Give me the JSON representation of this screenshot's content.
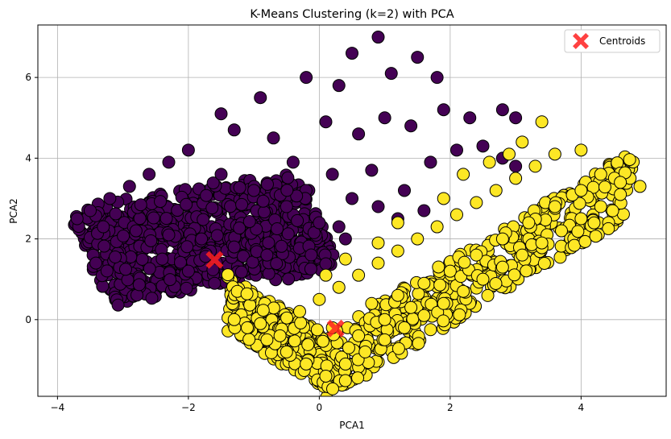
{
  "chart_data": {
    "type": "scatter",
    "title": "K-Means Clustering (k=2) with PCA",
    "xlabel": "PCA1",
    "ylabel": "PCA2",
    "xlim": [
      -4.3,
      5.3
    ],
    "ylim": [
      -1.9,
      7.3
    ],
    "xticks": [
      -4,
      -2,
      0,
      2,
      4
    ],
    "yticks": [
      0,
      2,
      4,
      6
    ],
    "xtick_labels": [
      "−4",
      "−2",
      "0",
      "2",
      "4"
    ],
    "ytick_labels": [
      "0",
      "2",
      "4",
      "6"
    ],
    "grid": true,
    "legend": {
      "placement": "top-right",
      "entries": [
        "Centroids"
      ]
    },
    "colors": {
      "cluster_0": "#440154",
      "cluster_1": "#fde725",
      "centroid": "#ff2020",
      "grid": "#b0b0b0"
    },
    "series": [
      {
        "cluster": 0,
        "color": "#440154",
        "sample_points": [
          [
            -3.7,
            2.5
          ],
          [
            -3.5,
            2.7
          ],
          [
            -3.2,
            3.0
          ],
          [
            -2.9,
            3.3
          ],
          [
            -2.6,
            3.6
          ],
          [
            -2.3,
            3.9
          ],
          [
            -2.0,
            4.2
          ],
          [
            -3.3,
            2.3
          ],
          [
            -2.8,
            2.2
          ],
          [
            -2.3,
            2.1
          ],
          [
            -1.8,
            2.0
          ],
          [
            -1.3,
            1.8
          ],
          [
            -0.8,
            1.6
          ],
          [
            -2.4,
            1.5
          ],
          [
            -2.0,
            1.2
          ],
          [
            -1.6,
            0.9
          ],
          [
            -1.2,
            0.6
          ],
          [
            -0.8,
            0.3
          ],
          [
            -0.4,
            0.1
          ],
          [
            -1.5,
            3.6
          ],
          [
            -1.0,
            3.2
          ],
          [
            -0.5,
            2.8
          ],
          [
            0.0,
            2.4
          ],
          [
            0.4,
            2.0
          ],
          [
            -1.5,
            5.1
          ],
          [
            -0.9,
            5.5
          ],
          [
            -0.2,
            6.0
          ],
          [
            0.3,
            5.8
          ],
          [
            0.5,
            6.6
          ],
          [
            0.9,
            7.0
          ],
          [
            1.1,
            6.1
          ],
          [
            1.5,
            6.5
          ],
          [
            1.8,
            6.0
          ],
          [
            -1.3,
            4.7
          ],
          [
            -0.7,
            4.5
          ],
          [
            0.1,
            4.9
          ],
          [
            0.6,
            4.6
          ],
          [
            1.0,
            5.0
          ],
          [
            1.4,
            4.8
          ],
          [
            1.9,
            5.2
          ],
          [
            2.3,
            5.0
          ],
          [
            2.8,
            5.2
          ],
          [
            3.0,
            5.0
          ],
          [
            -0.4,
            3.9
          ],
          [
            0.2,
            3.6
          ],
          [
            0.8,
            3.7
          ],
          [
            1.3,
            3.2
          ],
          [
            1.7,
            3.9
          ],
          [
            2.1,
            4.2
          ],
          [
            2.5,
            4.3
          ],
          [
            2.8,
            4.0
          ],
          [
            3.0,
            3.8
          ],
          [
            0.5,
            3.0
          ],
          [
            0.9,
            2.8
          ],
          [
            1.2,
            2.5
          ],
          [
            1.6,
            2.7
          ],
          [
            0.3,
            2.3
          ]
        ]
      },
      {
        "cluster": 1,
        "color": "#fde725",
        "sample_points": [
          [
            0.1,
            -1.4
          ],
          [
            -0.2,
            -1.1
          ],
          [
            -0.5,
            -0.8
          ],
          [
            -0.8,
            -0.5
          ],
          [
            -1.1,
            -0.2
          ],
          [
            -1.3,
            0.0
          ],
          [
            0.4,
            -1.1
          ],
          [
            0.7,
            -0.8
          ],
          [
            1.0,
            -0.5
          ],
          [
            1.3,
            -0.2
          ],
          [
            1.6,
            0.1
          ],
          [
            1.9,
            0.4
          ],
          [
            2.2,
            0.7
          ],
          [
            2.5,
            1.0
          ],
          [
            2.8,
            1.3
          ],
          [
            3.1,
            1.6
          ],
          [
            3.4,
            1.9
          ],
          [
            3.7,
            2.2
          ],
          [
            4.0,
            2.5
          ],
          [
            4.3,
            2.8
          ],
          [
            4.6,
            3.1
          ],
          [
            4.9,
            3.3
          ],
          [
            0.0,
            0.5
          ],
          [
            0.3,
            0.8
          ],
          [
            0.6,
            1.1
          ],
          [
            0.9,
            1.4
          ],
          [
            1.2,
            1.7
          ],
          [
            1.5,
            2.0
          ],
          [
            1.8,
            2.3
          ],
          [
            2.1,
            2.6
          ],
          [
            2.4,
            2.9
          ],
          [
            2.7,
            3.2
          ],
          [
            3.0,
            3.5
          ],
          [
            3.3,
            3.8
          ],
          [
            3.6,
            4.1
          ],
          [
            4.0,
            4.2
          ],
          [
            4.3,
            3.6
          ],
          [
            4.6,
            3.4
          ],
          [
            0.8,
            0.4
          ],
          [
            1.2,
            0.6
          ],
          [
            1.6,
            0.9
          ],
          [
            2.0,
            1.2
          ],
          [
            2.4,
            1.6
          ],
          [
            2.8,
            2.0
          ],
          [
            3.2,
            2.4
          ],
          [
            3.6,
            2.8
          ],
          [
            4.0,
            3.2
          ],
          [
            -0.3,
            0.2
          ],
          [
            0.2,
            -0.2
          ],
          [
            0.6,
            -0.4
          ],
          [
            1.0,
            0.0
          ],
          [
            1.4,
            0.3
          ],
          [
            -0.6,
            -0.4
          ],
          [
            -0.9,
            -0.1
          ],
          [
            2.2,
            3.6
          ],
          [
            1.9,
            3.0
          ],
          [
            2.6,
            3.9
          ],
          [
            3.1,
            4.4
          ],
          [
            3.4,
            4.9
          ],
          [
            2.9,
            4.1
          ],
          [
            1.2,
            2.4
          ],
          [
            0.9,
            1.9
          ],
          [
            0.4,
            1.5
          ],
          [
            0.1,
            1.1
          ]
        ]
      }
    ],
    "centroids": [
      [
        -1.6,
        1.48
      ],
      [
        0.25,
        -0.22
      ]
    ]
  }
}
